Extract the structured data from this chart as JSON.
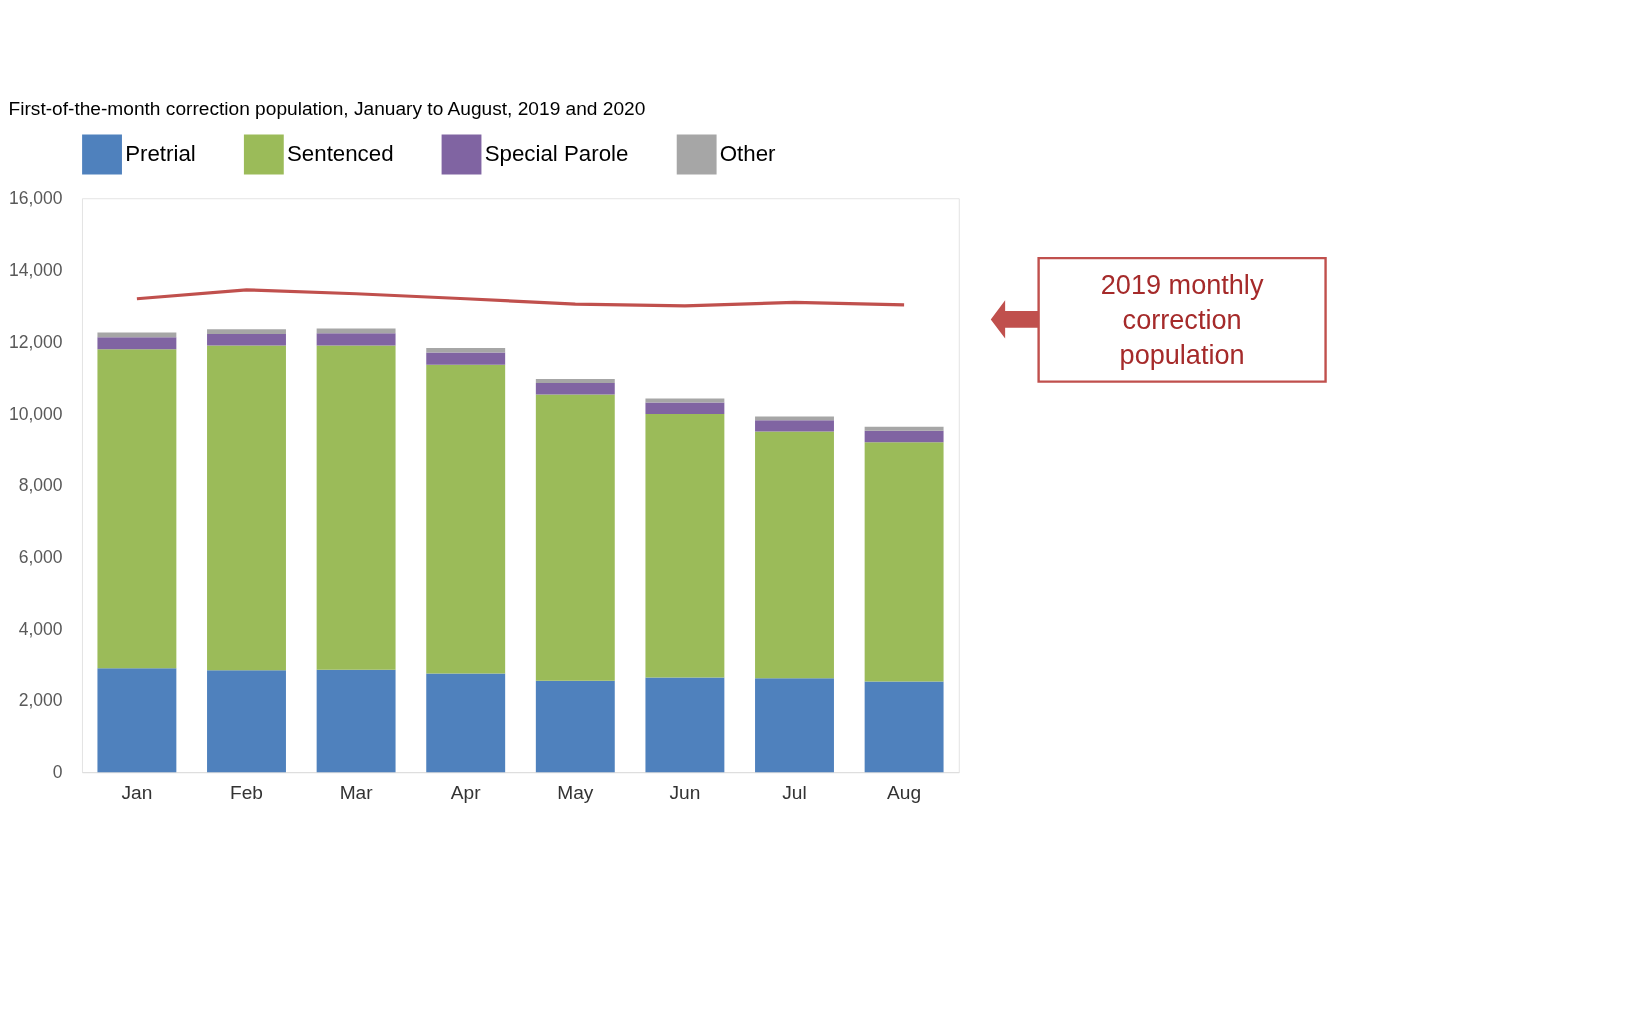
{
  "chart_data": {
    "type": "bar",
    "title": "First-of-the-month correction population, January to August, 2019 and 2020",
    "categories": [
      "Jan",
      "Feb",
      "Mar",
      "Apr",
      "May",
      "Jun",
      "Jul",
      "Aug"
    ],
    "stacked": true,
    "series": [
      {
        "name": "Pretrial",
        "color": "#4f81bd",
        "values": [
          2900,
          2840,
          2860,
          2750,
          2550,
          2640,
          2620,
          2530
        ]
      },
      {
        "name": "Sentenced",
        "color": "#9bbb59",
        "values": [
          8890,
          9060,
          9040,
          8610,
          7980,
          7350,
          6880,
          6670
        ]
      },
      {
        "name": "Special Parole",
        "color": "#8064a2",
        "values": [
          340,
          320,
          340,
          340,
          320,
          320,
          310,
          320
        ]
      },
      {
        "name": "Other",
        "color": "#a6a6a6",
        "values": [
          130,
          130,
          130,
          130,
          110,
          110,
          110,
          110
        ]
      },
      {
        "type": "line",
        "color": "#c0504d",
        "values": [
          13200,
          13450,
          13340,
          13200,
          13050,
          13000,
          13100,
          13030
        ]
      }
    ],
    "ylim": [
      0,
      16000
    ],
    "yticks": [
      0,
      {
        "value": 2000,
        "label": "2,000"
      },
      {
        "value": 4000,
        "label": "4,000"
      },
      {
        "value": 6000,
        "label": "6,000"
      },
      {
        "value": 8000,
        "label": "8,000"
      },
      {
        "value": 10000,
        "label": "10,000"
      },
      {
        "value": 12000,
        "label": "12,000"
      },
      {
        "value": 14000,
        "label": "14,000"
      },
      {
        "value": 16000,
        "label": "16,000"
      }
    ],
    "grid": false,
    "legend": "top",
    "annotations": [
      "2019 monthly correction population"
    ]
  }
}
